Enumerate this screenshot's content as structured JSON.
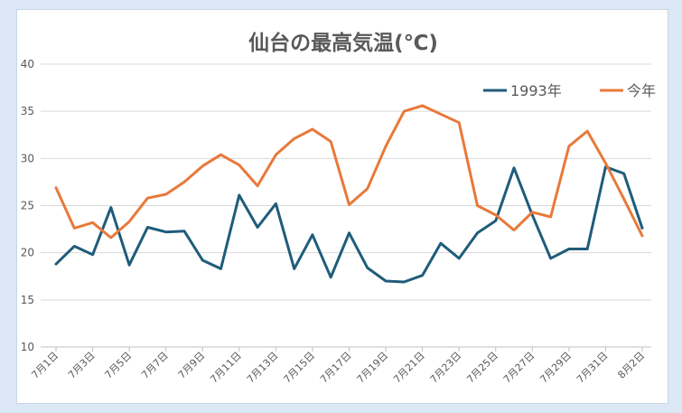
{
  "chart_data": {
    "type": "line",
    "title": "仙台の最高気温(℃)",
    "xlabel": "",
    "ylabel": "",
    "ylim": [
      10,
      40
    ],
    "y_ticks": [
      10,
      15,
      20,
      25,
      30,
      35,
      40
    ],
    "grid": true,
    "legend_position": "top-right",
    "categories": [
      "7月1日",
      "7月2日",
      "7月3日",
      "7月4日",
      "7月5日",
      "7月6日",
      "7月7日",
      "7月8日",
      "7月9日",
      "7月10日",
      "7月11日",
      "7月12日",
      "7月13日",
      "7月14日",
      "7月15日",
      "7月16日",
      "7月17日",
      "7月18日",
      "7月19日",
      "7月20日",
      "7月21日",
      "7月22日",
      "7月23日",
      "7月24日",
      "7月25日",
      "7月26日",
      "7月27日",
      "7月28日",
      "7月29日",
      "7月30日",
      "7月31日",
      "8月1日",
      "8月2日"
    ],
    "tick_labels": [
      "7月1日",
      "7月3日",
      "7月5日",
      "7月7日",
      "7月9日",
      "7月11日",
      "7月13日",
      "7月15日",
      "7月17日",
      "7月19日",
      "7月21日",
      "7月23日",
      "7月25日",
      "7月27日",
      "7月29日",
      "7月31日",
      "8月2日"
    ],
    "series": [
      {
        "name": "1993年",
        "color": "#1f5c7a",
        "values": [
          18.8,
          20.7,
          19.8,
          24.8,
          18.7,
          22.7,
          22.2,
          22.3,
          19.2,
          18.3,
          26.1,
          22.7,
          25.2,
          18.3,
          21.9,
          17.4,
          22.1,
          18.4,
          17.0,
          16.9,
          17.6,
          21.0,
          19.4,
          22.1,
          23.4,
          29.0,
          24.0,
          19.4,
          20.4,
          20.4,
          29.1,
          28.4,
          22.6
        ]
      },
      {
        "name": "今年",
        "color": "#e8793a",
        "values": [
          26.9,
          22.6,
          23.2,
          21.6,
          23.3,
          25.8,
          26.2,
          27.5,
          29.2,
          30.4,
          29.3,
          27.1,
          30.4,
          32.1,
          33.1,
          31.8,
          25.1,
          26.8,
          31.3,
          35.0,
          35.6,
          34.7,
          33.8,
          25.0,
          24.0,
          22.4,
          24.3,
          23.8,
          31.3,
          32.9,
          29.5,
          25.7,
          21.8
        ]
      }
    ]
  }
}
